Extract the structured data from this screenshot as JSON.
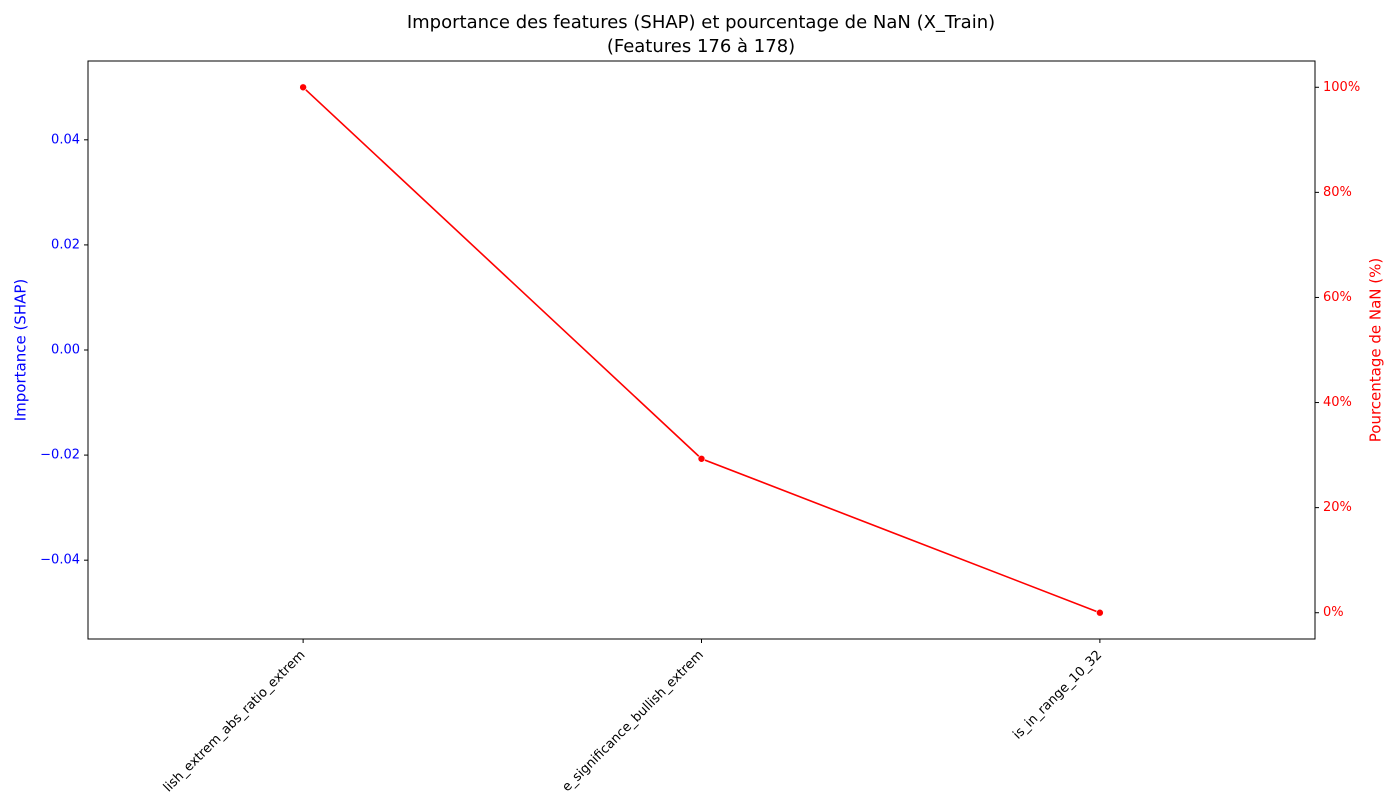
{
  "chart_data": {
    "type": "line",
    "title": "Importance des features (SHAP) et pourcentage de NaN (X_Train)",
    "subtitle": "(Features 176 à 178)",
    "categories": [
      "lish_extrem_abs_ratio_extrem",
      "e_significance_bullish_extrem",
      "is_in_range_10_32"
    ],
    "y_label": "Importance (SHAP)",
    "y_color": "blue",
    "y2_label": "Pourcentage de NaN (%)",
    "y2_color": "red",
    "ylim": [
      -0.055,
      0.055
    ],
    "yticks": [
      {
        "value": -0.04,
        "label": "−0.04"
      },
      {
        "value": -0.02,
        "label": "−0.02"
      },
      {
        "value": 0,
        "label": "0.00"
      },
      0.02,
      0.04
    ],
    "y2lim": [
      -5,
      105
    ],
    "y2ticks": [
      {
        "value": 0,
        "label": "0%"
      },
      {
        "value": 20,
        "label": "20%"
      },
      {
        "value": 40,
        "label": "40%"
      },
      {
        "value": 60,
        "label": "60%"
      },
      {
        "value": 80,
        "label": "80%"
      },
      {
        "value": 100,
        "label": "100%"
      }
    ],
    "series": [
      {
        "name": "Pourcentage de NaN",
        "color": "red",
        "axis": "y2",
        "values": [
          100,
          29.3,
          0
        ]
      }
    ],
    "grid": false,
    "legend": false
  }
}
